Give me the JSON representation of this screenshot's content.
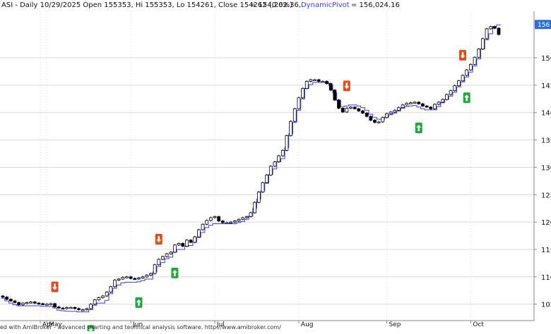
{
  "header": {
    "left": "ASI - Daily 10/29/2025 Open 155353, Hi 155353, Lo 154261, Close 154262 (0.0%)",
    "close_label": "= 154,262.36,",
    "pivot_name": "DynamicPivot",
    "pivot_value": "= 156,024.16"
  },
  "footer": {
    "text": "ed with AmiBroker - advanced charting and technical analysis software. http://www.amibroker.com/"
  },
  "colors": {
    "grid": "#d9d9d9",
    "candle": "#000000",
    "pivot_line": "#3a3aff",
    "sell_signal": "#e64a19",
    "buy_signal": "#1faa3a",
    "last_price_badge": "#2d6fd6"
  },
  "chart_data": {
    "type": "candlestick",
    "title": "ASI - Daily 10/29/2025",
    "ylim": [
      102000,
      158500
    ],
    "y_tick_labels": [
      "105",
      "110",
      "115",
      "120",
      "125",
      "130",
      "135",
      "140",
      "145",
      "150",
      "154",
      "156"
    ],
    "y_tick_values": [
      105000,
      110000,
      115000,
      120000,
      125000,
      130000,
      135000,
      140000,
      145000,
      150000
    ],
    "x_tick_labels": [
      "Apr",
      "May",
      "Jun",
      "Jul",
      "Aug",
      "Sep",
      "Oct"
    ],
    "last_close": 154262.36,
    "last_pivot": 156024.16,
    "series": [
      {
        "name": "Close",
        "kind": "candles",
        "values": [
          106300,
          105900,
          105600,
          105300,
          104900,
          105200,
          105300,
          105400,
          105200,
          105100,
          105000,
          105000,
          105100,
          104500,
          104300,
          104200,
          104400,
          104400,
          104200,
          104000,
          104000,
          104200,
          105000,
          105800,
          106200,
          106500,
          107200,
          108200,
          109400,
          109600,
          109900,
          110000,
          109700,
          109600,
          109800,
          110000,
          110300,
          110600,
          112200,
          113200,
          113700,
          114200,
          114500,
          115800,
          116100,
          115600,
          116700,
          116300,
          117300,
          118600,
          119600,
          120300,
          120800,
          121000,
          120200,
          119900,
          119900,
          120000,
          120200,
          120500,
          120800,
          121000,
          121700,
          123600,
          125500,
          127200,
          128600,
          130200,
          131000,
          132100,
          133100,
          135800,
          138400,
          140700,
          142700,
          144400,
          145700,
          146000,
          146000,
          145700,
          145700,
          145300,
          144100,
          142300,
          140800,
          140100,
          140800,
          141000,
          140700,
          140300,
          139900,
          139300,
          138600,
          138200,
          138300,
          139100,
          139800,
          140100,
          140400,
          140900,
          141400,
          141700,
          141800,
          141900,
          141600,
          141200,
          141000,
          140700,
          141500,
          141900,
          142400,
          143300,
          144000,
          144900,
          145800,
          146800,
          147800,
          148800,
          150100,
          151600,
          153500,
          155300,
          155700,
          155400,
          154262
        ]
      },
      {
        "name": "DynamicPivot",
        "kind": "step-line",
        "values": [
          106100,
          105600,
          105200,
          104900,
          104700,
          104700,
          104700,
          104700,
          104700,
          104700,
          104600,
          104600,
          104600,
          104300,
          103900,
          103800,
          103700,
          103700,
          103700,
          103600,
          103600,
          103600,
          104000,
          104800,
          105200,
          105200,
          105700,
          106900,
          107900,
          108500,
          108900,
          109000,
          109000,
          109000,
          109100,
          109300,
          109600,
          109600,
          110900,
          111900,
          112600,
          113300,
          113600,
          114500,
          115000,
          115000,
          115600,
          115700,
          116300,
          117200,
          118100,
          119000,
          119400,
          119700,
          119700,
          119700,
          119700,
          119700,
          119700,
          119900,
          120100,
          120500,
          121100,
          122500,
          124200,
          125700,
          127100,
          128700,
          129700,
          131000,
          131600,
          133600,
          136100,
          138200,
          140400,
          142500,
          144400,
          145100,
          145500,
          145500,
          145500,
          145500,
          145000,
          143600,
          142200,
          141100,
          141200,
          141400,
          141400,
          141200,
          140900,
          140400,
          139700,
          139100,
          138800,
          138800,
          139200,
          139600,
          139900,
          140300,
          140800,
          141100,
          141200,
          141300,
          141000,
          140700,
          140500,
          140500,
          140500,
          141100,
          141800,
          142400,
          143000,
          143700,
          144700,
          145600,
          146500,
          147400,
          148500,
          149800,
          151600,
          153300,
          154400,
          155700,
          156024
        ]
      }
    ],
    "signals": [
      {
        "bar": 13,
        "type": "sell"
      },
      {
        "bar": 22,
        "type": "buy"
      },
      {
        "bar": 34,
        "type": "buy"
      },
      {
        "bar": 39,
        "type": "sell"
      },
      {
        "bar": 43,
        "type": "buy"
      },
      {
        "bar": 86,
        "type": "sell"
      },
      {
        "bar": 104,
        "type": "buy"
      },
      {
        "bar": 115,
        "type": "sell"
      },
      {
        "bar": 116,
        "type": "buy"
      }
    ]
  }
}
